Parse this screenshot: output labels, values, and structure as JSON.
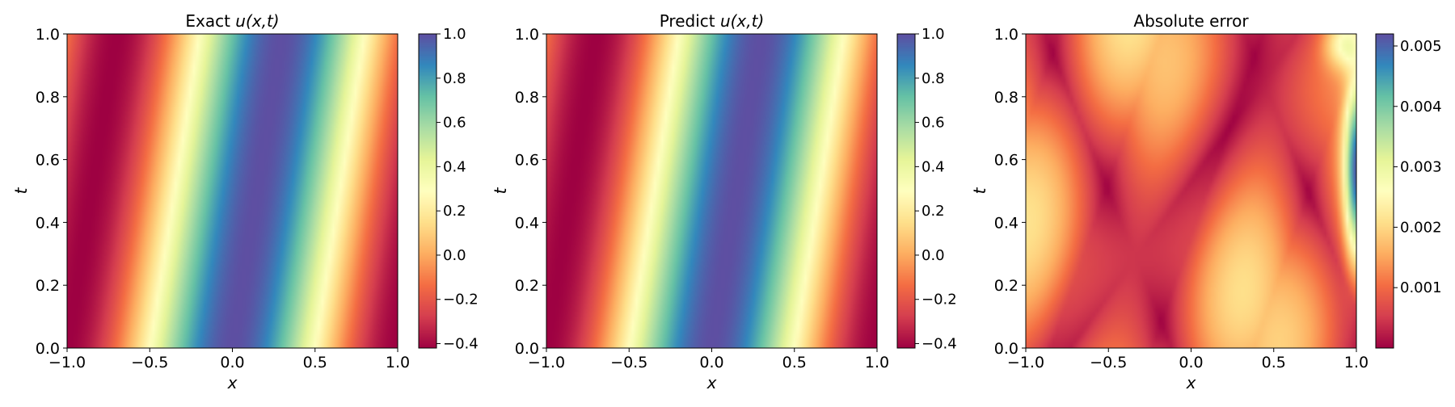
{
  "colors": {
    "colormap": "Spectral",
    "colormap_stops": [
      "#9e0142",
      "#d53e4f",
      "#f46d43",
      "#fdae61",
      "#fee08b",
      "#ffffbf",
      "#e6f598",
      "#abdda4",
      "#66c2a5",
      "#3288bd",
      "#5e4fa2"
    ],
    "axis": "#000000",
    "background": "#ffffff"
  },
  "chart_data": [
    {
      "type": "heatmap",
      "title_text": "Exact",
      "title_math": "u(x,t)",
      "xlabel": "x",
      "ylabel": "t",
      "xlim": [
        -1.0,
        1.0
      ],
      "ylim": [
        0.0,
        1.0
      ],
      "x_ticks": [
        "−1.0",
        "−0.5",
        "0.0",
        "0.5",
        "1.0"
      ],
      "y_ticks": [
        "0.0",
        "0.2",
        "0.4",
        "0.6",
        "0.8",
        "1.0"
      ],
      "colorbar": {
        "range": [
          -0.42,
          1.0
        ],
        "ticks": [
          "−0.4",
          "−0.2",
          "0.0",
          "0.2",
          "0.4",
          "0.6",
          "0.8",
          "1.0"
        ]
      },
      "field": "u(x,t) ≈ 0.29 + 0.71·cos(π(x − 0.3t))"
    },
    {
      "type": "heatmap",
      "title_text": "Predict",
      "title_math": "u(x,t)",
      "xlabel": "x",
      "ylabel": "t",
      "xlim": [
        -1.0,
        1.0
      ],
      "ylim": [
        0.0,
        1.0
      ],
      "x_ticks": [
        "−1.0",
        "−0.5",
        "0.0",
        "0.5",
        "1.0"
      ],
      "y_ticks": [
        "0.0",
        "0.2",
        "0.4",
        "0.6",
        "0.8",
        "1.0"
      ],
      "colorbar": {
        "range": [
          -0.42,
          1.0
        ],
        "ticks": [
          "−0.4",
          "−0.2",
          "0.0",
          "0.2",
          "0.4",
          "0.6",
          "0.8",
          "1.0"
        ]
      },
      "field": "u(x,t) ≈ 0.29 + 0.71·cos(π(x − 0.3t))"
    },
    {
      "type": "heatmap",
      "title_text": "Absolute error",
      "title_math": "",
      "xlabel": "x",
      "ylabel": "t",
      "xlim": [
        -1.0,
        1.0
      ],
      "ylim": [
        0.0,
        1.0
      ],
      "x_ticks": [
        "−1.0",
        "−0.5",
        "0.0",
        "0.5",
        "1.0"
      ],
      "y_ticks": [
        "0.0",
        "0.2",
        "0.4",
        "0.6",
        "0.8",
        "1.0"
      ],
      "colorbar": {
        "range": [
          0.0,
          0.0052
        ],
        "ticks": [
          "0.001",
          "0.002",
          "0.003",
          "0.004",
          "0.005"
        ]
      },
      "field": "|Exact − Predict|, max ≈ 0.005 near x = 1, t ≈ 0.5"
    }
  ]
}
